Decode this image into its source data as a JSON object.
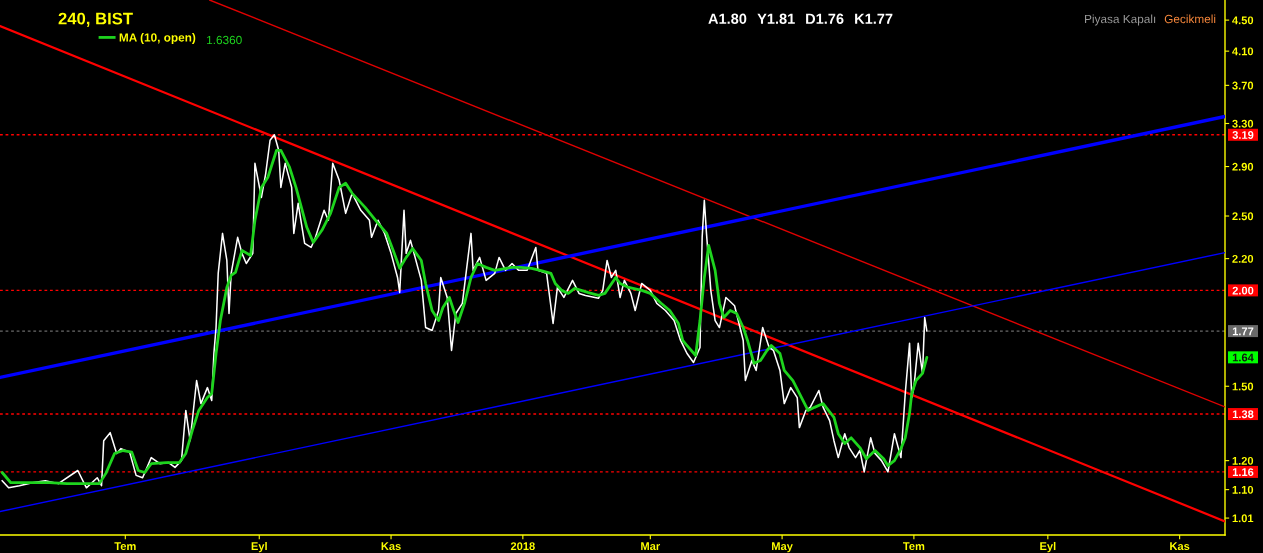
{
  "chart_data": {
    "type": "line",
    "title": "240, BIST",
    "annotations": [
      "A1.80",
      "Y1.81",
      "D1.76",
      "K1.77",
      "1.6360",
      "Piyasa Kapalı",
      "Gecikmeli",
      "1.64"
    ],
    "log": "y",
    "legend": "top left",
    "xlim": [
      "2017-05-04",
      "2018-11-22"
    ],
    "ylim": [
      0.96,
      4.78
    ],
    "xticks": [
      {
        "value": "2017-07-01",
        "label": "Tem"
      },
      {
        "value": "2017-09-01",
        "label": "Eyl"
      },
      {
        "value": "2017-11-01",
        "label": "Kas"
      },
      {
        "value": "2018-01-01",
        "label": "2018"
      },
      {
        "value": "2018-03-01",
        "label": "Mar"
      },
      {
        "value": "2018-05-01",
        "label": "May"
      },
      {
        "value": "2018-07-01",
        "label": "Tem"
      },
      {
        "value": "2018-09-01",
        "label": "Eyl"
      },
      {
        "value": "2018-11-01",
        "label": "Kas"
      }
    ],
    "yticks": [
      {
        "value": 4.5,
        "label": "4.50"
      },
      {
        "value": 4.1,
        "label": "4.10"
      },
      {
        "value": 3.7,
        "label": "3.70"
      },
      {
        "value": 3.3,
        "label": "3.30"
      },
      {
        "value": 2.9,
        "label": "2.90"
      },
      {
        "value": 2.5,
        "label": "2.50"
      },
      {
        "value": 2.2,
        "label": "2.20"
      },
      {
        "value": 1.5,
        "label": "1.50"
      },
      {
        "value": 1.2,
        "label": "1.20"
      },
      {
        "value": 1.1,
        "label": "1.10"
      },
      {
        "value": 1.01,
        "label": "1.01"
      }
    ],
    "ref_lines": [
      {
        "axis": "y",
        "value": 3.19,
        "label": "3.19",
        "color": "#ff0000",
        "line_style": "dotted"
      },
      {
        "axis": "y",
        "value": 2.0,
        "label": "2.00",
        "color": "#ff0000",
        "line_style": "dotted"
      },
      {
        "axis": "y",
        "value": 1.77,
        "label": "1.77",
        "color": "#6a6a6a",
        "line_style": "dotted"
      },
      {
        "axis": "y",
        "value": 1.38,
        "label": "1.38",
        "color": "#ff0000",
        "line_style": "dotted"
      },
      {
        "axis": "y",
        "value": 1.16,
        "label": "1.16",
        "color": "#ff0000",
        "line_style": "dotted"
      }
    ],
    "series": [
      {
        "color": "#ffffff",
        "x": [
          "2017-05-05",
          "2017-05-08",
          "2017-05-13",
          "2017-05-19",
          "2017-05-25",
          "2017-05-31",
          "2017-06-09",
          "2017-06-13",
          "2017-06-18",
          "2017-06-20",
          "2017-06-21",
          "2017-06-24",
          "2017-06-27",
          "2017-06-29",
          "2017-07-03",
          "2017-07-06",
          "2017-07-09",
          "2017-07-13",
          "2017-07-17",
          "2017-07-21",
          "2017-07-24",
          "2017-07-27",
          "2017-07-29",
          "2017-07-31",
          "2017-08-03",
          "2017-08-05",
          "2017-08-08",
          "2017-08-10",
          "2017-08-11",
          "2017-08-12",
          "2017-08-13",
          "2017-08-15",
          "2017-08-17",
          "2017-08-18",
          "2017-08-19",
          "2017-08-22",
          "2017-08-24",
          "2017-08-26",
          "2017-08-29",
          "2017-08-30",
          "2017-09-02",
          "2017-09-04",
          "2017-09-06",
          "2017-09-08",
          "2017-09-10",
          "2017-09-11",
          "2017-09-13",
          "2017-09-16",
          "2017-09-17",
          "2017-09-19",
          "2017-09-22",
          "2017-09-25",
          "2017-09-27",
          "2017-10-01",
          "2017-10-03",
          "2017-10-05",
          "2017-10-08",
          "2017-10-11",
          "2017-10-14",
          "2017-10-18",
          "2017-10-22",
          "2017-10-23",
          "2017-10-26",
          "2017-10-29",
          "2017-11-01",
          "2017-11-04",
          "2017-11-05",
          "2017-11-07",
          "2017-11-08",
          "2017-11-10",
          "2017-11-15",
          "2017-11-17",
          "2017-11-20",
          "2017-11-23",
          "2017-11-24",
          "2017-11-27",
          "2017-11-29",
          "2017-12-01",
          "2017-12-04",
          "2017-12-08",
          "2017-12-09",
          "2017-12-12",
          "2017-12-15",
          "2017-12-19",
          "2017-12-21",
          "2017-12-24",
          "2017-12-27",
          "2017-12-30",
          "2018-01-03",
          "2018-01-07",
          "2018-01-08",
          "2018-01-12",
          "2018-01-15",
          "2018-01-17",
          "2018-01-20",
          "2018-01-24",
          "2018-01-27",
          "2018-01-30",
          "2018-02-05",
          "2018-02-07",
          "2018-02-09",
          "2018-02-11",
          "2018-02-13",
          "2018-02-15",
          "2018-02-17",
          "2018-02-20",
          "2018-02-22",
          "2018-02-25",
          "2018-03-01",
          "2018-03-04",
          "2018-03-08",
          "2018-03-12",
          "2018-03-15",
          "2018-03-18",
          "2018-03-21",
          "2018-03-24",
          "2018-03-25",
          "2018-03-26",
          "2018-03-27",
          "2018-03-29",
          "2018-03-31",
          "2018-04-02",
          "2018-04-05",
          "2018-04-09",
          "2018-04-13",
          "2018-04-14",
          "2018-04-17",
          "2018-04-19",
          "2018-04-22",
          "2018-04-25",
          "2018-04-27",
          "2018-04-30",
          "2018-05-02",
          "2018-05-05",
          "2018-05-08",
          "2018-05-09",
          "2018-05-12",
          "2018-05-14",
          "2018-05-18",
          "2018-05-20",
          "2018-05-23",
          "2018-05-25",
          "2018-05-27",
          "2018-05-30",
          "2018-06-01",
          "2018-06-04",
          "2018-06-06",
          "2018-06-08",
          "2018-06-11",
          "2018-06-13",
          "2018-06-16",
          "2018-06-19",
          "2018-06-22",
          "2018-06-25",
          "2018-06-27",
          "2018-06-29",
          "2018-06-30",
          "2018-07-01",
          "2018-07-03",
          "2018-07-05",
          "2018-07-06",
          "2018-07-07"
        ],
        "values": [
          1.13,
          1.106,
          1.113,
          1.123,
          1.13,
          1.12,
          1.165,
          1.106,
          1.14,
          1.113,
          1.274,
          1.305,
          1.226,
          1.244,
          1.231,
          1.148,
          1.14,
          1.211,
          1.189,
          1.193,
          1.176,
          1.2,
          1.395,
          1.274,
          1.526,
          1.424,
          1.494,
          1.437,
          1.655,
          1.789,
          2.105,
          2.373,
          2.188,
          1.866,
          2.105,
          2.345,
          2.235,
          2.168,
          2.235,
          2.928,
          2.643,
          2.842,
          3.138,
          3.19,
          3.045,
          2.724,
          2.928,
          2.724,
          2.373,
          2.597,
          2.303,
          2.275,
          2.345,
          2.543,
          2.468,
          2.928,
          2.783,
          2.52,
          2.676,
          2.543,
          2.468,
          2.345,
          2.468,
          2.373,
          2.235,
          2.079,
          1.988,
          2.543,
          2.235,
          2.324,
          2.061,
          1.789,
          1.773,
          1.883,
          2.079,
          1.958,
          1.67,
          1.866,
          1.924,
          2.373,
          2.124,
          2.208,
          2.061,
          2.105,
          2.208,
          2.124,
          2.168,
          2.124,
          2.124,
          2.275,
          2.124,
          2.105,
          1.811,
          2.018,
          1.958,
          2.061,
          1.982,
          1.97,
          1.953,
          2.0,
          2.188,
          2.079,
          2.124,
          1.958,
          2.061,
          1.982,
          1.883,
          2.042,
          2.0,
          1.924,
          1.883,
          1.827,
          1.721,
          1.655,
          1.611,
          1.685,
          2.345,
          2.621,
          2.373,
          2.0,
          1.827,
          1.789,
          1.958,
          1.91,
          1.721,
          1.526,
          1.621,
          1.573,
          1.789,
          1.685,
          1.67,
          1.573,
          1.424,
          1.494,
          1.45,
          1.325,
          1.395,
          1.408,
          1.481,
          1.408,
          1.353,
          1.274,
          1.211,
          1.301,
          1.248,
          1.211,
          1.237,
          1.16,
          1.285,
          1.226,
          1.2,
          1.16,
          1.301,
          1.211,
          1.468,
          1.706,
          1.45,
          1.494,
          1.706,
          1.559,
          1.844,
          1.77
        ]
      },
      {
        "name": "MA (10, open)",
        "color": "#1ed41e",
        "x": [
          "2017-05-05",
          "2017-05-09",
          "2017-05-16",
          "2017-05-27",
          "2017-06-04",
          "2017-06-13",
          "2017-06-19",
          "2017-06-22",
          "2017-06-26",
          "2017-06-30",
          "2017-07-04",
          "2017-07-07",
          "2017-07-10",
          "2017-07-13",
          "2017-07-20",
          "2017-07-26",
          "2017-07-29",
          "2017-08-01",
          "2017-08-04",
          "2017-08-08",
          "2017-08-10",
          "2017-08-12",
          "2017-08-14",
          "2017-08-17",
          "2017-08-19",
          "2017-08-21",
          "2017-08-24",
          "2017-08-28",
          "2017-08-30",
          "2017-09-02",
          "2017-09-05",
          "2017-09-09",
          "2017-09-11",
          "2017-09-15",
          "2017-09-18",
          "2017-09-23",
          "2017-09-26",
          "2017-09-30",
          "2017-10-04",
          "2017-10-08",
          "2017-10-11",
          "2017-10-14",
          "2017-10-20",
          "2017-10-26",
          "2017-10-30",
          "2017-11-02",
          "2017-11-05",
          "2017-11-08",
          "2017-11-11",
          "2017-11-15",
          "2017-11-17",
          "2017-11-20",
          "2017-11-23",
          "2017-11-25",
          "2017-11-28",
          "2017-11-30",
          "2017-12-02",
          "2017-12-05",
          "2017-12-08",
          "2017-12-11",
          "2017-12-15",
          "2017-12-19",
          "2017-12-27",
          "2017-12-31",
          "2018-01-05",
          "2018-01-09",
          "2018-01-14",
          "2018-01-16",
          "2018-01-19",
          "2018-01-22",
          "2018-01-25",
          "2018-01-31",
          "2018-02-05",
          "2018-02-08",
          "2018-02-13",
          "2018-02-15",
          "2018-02-19",
          "2018-02-25",
          "2018-03-01",
          "2018-03-06",
          "2018-03-10",
          "2018-03-14",
          "2018-03-16",
          "2018-03-18",
          "2018-03-22",
          "2018-03-24",
          "2018-03-26",
          "2018-03-28",
          "2018-03-31",
          "2018-04-02",
          "2018-04-04",
          "2018-04-07",
          "2018-04-10",
          "2018-04-13",
          "2018-04-15",
          "2018-04-18",
          "2018-04-21",
          "2018-04-24",
          "2018-04-26",
          "2018-04-30",
          "2018-05-02",
          "2018-05-06",
          "2018-05-09",
          "2018-05-13",
          "2018-05-16",
          "2018-05-20",
          "2018-05-25",
          "2018-05-27",
          "2018-05-30",
          "2018-06-02",
          "2018-06-06",
          "2018-06-09",
          "2018-06-13",
          "2018-06-17",
          "2018-06-19",
          "2018-06-22",
          "2018-06-25",
          "2018-06-27",
          "2018-06-29",
          "2018-06-30",
          "2018-07-02",
          "2018-07-05",
          "2018-07-07"
        ],
        "values": [
          1.158,
          1.123,
          1.123,
          1.123,
          1.12,
          1.12,
          1.12,
          1.155,
          1.226,
          1.237,
          1.231,
          1.165,
          1.158,
          1.189,
          1.193,
          1.193,
          1.226,
          1.313,
          1.395,
          1.45,
          1.468,
          1.655,
          1.827,
          2.018,
          2.093,
          2.111,
          2.255,
          2.221,
          2.468,
          2.724,
          2.808,
          3.045,
          3.045,
          2.894,
          2.724,
          2.417,
          2.31,
          2.395,
          2.52,
          2.724,
          2.758,
          2.676,
          2.566,
          2.446,
          2.373,
          2.255,
          2.137,
          2.208,
          2.268,
          2.188,
          2.042,
          1.883,
          1.827,
          1.9,
          1.958,
          1.883,
          1.816,
          1.924,
          2.079,
          2.168,
          2.143,
          2.124,
          2.143,
          2.143,
          2.137,
          2.124,
          2.105,
          2.042,
          2.0,
          1.982,
          2.012,
          1.988,
          1.97,
          1.982,
          2.079,
          2.042,
          2.018,
          2.0,
          1.982,
          1.924,
          1.883,
          1.811,
          1.721,
          1.695,
          1.645,
          1.827,
          2.079,
          2.289,
          2.124,
          1.924,
          1.844,
          1.883,
          1.866,
          1.789,
          1.721,
          1.607,
          1.621,
          1.67,
          1.695,
          1.655,
          1.573,
          1.526,
          1.468,
          1.395,
          1.408,
          1.424,
          1.366,
          1.301,
          1.263,
          1.285,
          1.248,
          1.207,
          1.237,
          1.207,
          1.182,
          1.2,
          1.244,
          1.285,
          1.383,
          1.468,
          1.526,
          1.559,
          1.636
        ]
      },
      {
        "color": "#e00000",
        "x": [
          "2017-08-09",
          "2018-11-22"
        ],
        "values": [
          4.78,
          1.41
        ]
      },
      {
        "color": "#ff0000",
        "x": [
          "2017-05-04",
          "2018-11-22"
        ],
        "values": [
          4.42,
          1.0
        ]
      },
      {
        "color": "#0000ff",
        "x": [
          "2017-05-04",
          "2018-11-22"
        ],
        "values": [
          1.54,
          3.37
        ]
      },
      {
        "color": "#0000ff",
        "x": [
          "2017-05-04",
          "2018-11-22"
        ],
        "values": [
          1.03,
          2.24
        ]
      }
    ]
  }
}
